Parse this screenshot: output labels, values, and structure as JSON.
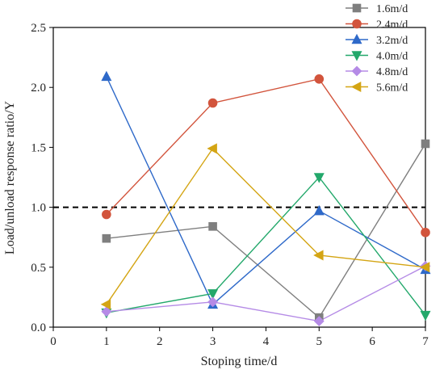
{
  "chart_data": {
    "type": "line",
    "xlabel": "Stoping time/d",
    "ylabel": "Load/unload response ratio/Y",
    "xlim": [
      0,
      7
    ],
    "ylim": [
      0,
      2.5
    ],
    "x_ticks": [
      "0",
      "1",
      "2",
      "3",
      "4",
      "5",
      "6",
      "7"
    ],
    "y_ticks": [
      "0.0",
      "0.5",
      "1.0",
      "1.5",
      "2.0",
      "2.5"
    ],
    "x": [
      1,
      3,
      5,
      7
    ],
    "reference_line": {
      "y": 1.0,
      "style": "dashed",
      "color": "#000000"
    },
    "legend_position": "top-right",
    "grid": false,
    "series": [
      {
        "name": "1.6m/d",
        "values": [
          0.74,
          0.84,
          0.08,
          1.53
        ],
        "color": "#7f7f7f",
        "marker": "square"
      },
      {
        "name": "2.4m/d",
        "values": [
          0.94,
          1.87,
          2.07,
          0.79
        ],
        "color": "#d2543c",
        "marker": "circle"
      },
      {
        "name": "3.2m/d",
        "values": [
          2.09,
          0.19,
          0.97,
          0.48
        ],
        "color": "#2e69c9",
        "marker": "triangle-up"
      },
      {
        "name": "4.0m/d",
        "values": [
          0.12,
          0.28,
          1.25,
          0.1
        ],
        "color": "#23a86b",
        "marker": "triangle-down"
      },
      {
        "name": "4.8m/d",
        "values": [
          0.13,
          0.21,
          0.05,
          0.51
        ],
        "color": "#b58be6",
        "marker": "diamond"
      },
      {
        "name": "5.6m/d",
        "values": [
          0.19,
          1.49,
          0.6,
          0.5
        ],
        "color": "#d4a514",
        "marker": "triangle-left"
      }
    ]
  }
}
